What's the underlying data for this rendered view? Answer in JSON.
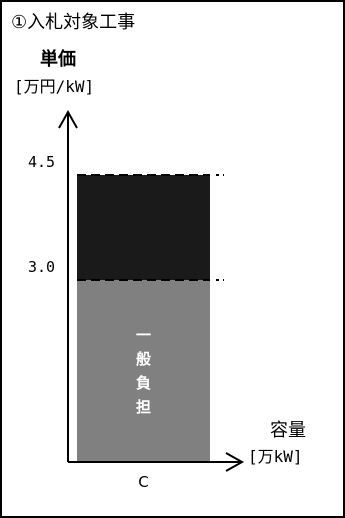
{
  "chart_data": {
    "type": "bar",
    "title": "①入札対象工事",
    "ylabel_line1": "単価",
    "ylabel_line2": "[万円/kW]",
    "xlabel_line1": "容量",
    "xlabel_line2": "[万kW]",
    "categories": [
      "C"
    ],
    "yticks": [
      {
        "label": "4.5",
        "value": 4.5
      },
      {
        "label": "3.0",
        "value": 3.0
      }
    ],
    "segments": [
      {
        "from": 0,
        "to": 3.0,
        "color": "#808080",
        "label": "一般負担"
      },
      {
        "from": 3.0,
        "to": 4.5,
        "color": "#1a1a1a",
        "label": ""
      }
    ]
  }
}
